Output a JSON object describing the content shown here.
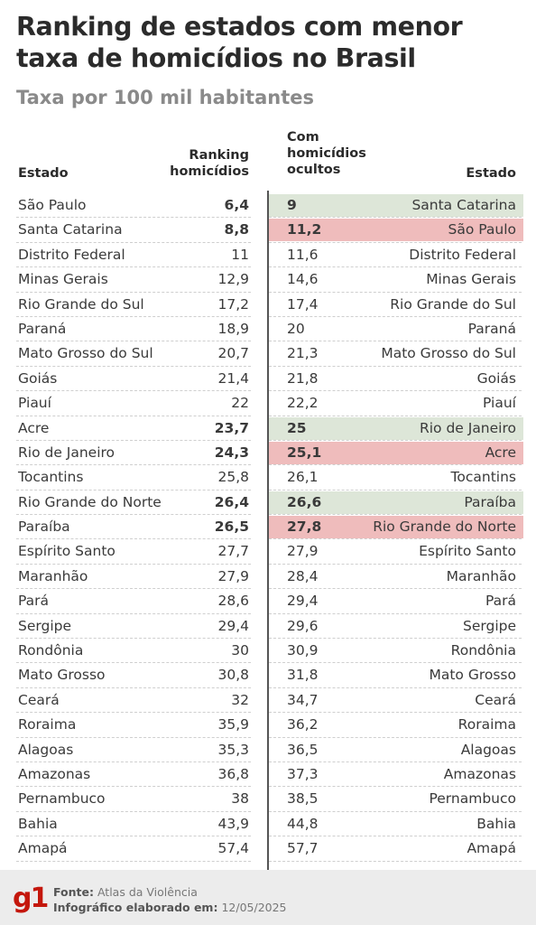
{
  "title": "Ranking de estados com menor taxa de homicídios no Brasil",
  "subtitle": "Taxa por 100 mil habitantes",
  "headers": {
    "estado_left": "Estado",
    "ranking_line1": "Ranking",
    "ranking_line2": "homicídios",
    "ocultos_line1": "Com",
    "ocultos_line2": "homicídios",
    "ocultos_line3": "ocultos",
    "estado_right": "Estado"
  },
  "colors": {
    "highlight_green": "#dde6d8",
    "highlight_red": "#efbcbc",
    "logo_red": "#c4170c"
  },
  "rows": [
    {
      "state_left": "São Paulo",
      "rate": "6,4",
      "hidden_rate": "9",
      "state_right": "Santa Catarina",
      "bold": true,
      "highlight": "green"
    },
    {
      "state_left": "Santa Catarina",
      "rate": "8,8",
      "hidden_rate": "11,2",
      "state_right": "São Paulo",
      "bold": true,
      "highlight": "red"
    },
    {
      "state_left": "Distrito Federal",
      "rate": "11",
      "hidden_rate": "11,6",
      "state_right": "Distrito Federal",
      "bold": false,
      "highlight": ""
    },
    {
      "state_left": "Minas Gerais",
      "rate": "12,9",
      "hidden_rate": "14,6",
      "state_right": "Minas Gerais",
      "bold": false,
      "highlight": ""
    },
    {
      "state_left": "Rio Grande do Sul",
      "rate": "17,2",
      "hidden_rate": "17,4",
      "state_right": "Rio Grande do Sul",
      "bold": false,
      "highlight": ""
    },
    {
      "state_left": "Paraná",
      "rate": "18,9",
      "hidden_rate": "20",
      "state_right": "Paraná",
      "bold": false,
      "highlight": ""
    },
    {
      "state_left": "Mato Grosso do Sul",
      "rate": "20,7",
      "hidden_rate": "21,3",
      "state_right": "Mato Grosso do Sul",
      "bold": false,
      "highlight": ""
    },
    {
      "state_left": "Goiás",
      "rate": "21,4",
      "hidden_rate": "21,8",
      "state_right": "Goiás",
      "bold": false,
      "highlight": ""
    },
    {
      "state_left": "Piauí",
      "rate": "22",
      "hidden_rate": "22,2",
      "state_right": "Piauí",
      "bold": false,
      "highlight": ""
    },
    {
      "state_left": "Acre",
      "rate": "23,7",
      "hidden_rate": "25",
      "state_right": "Rio de Janeiro",
      "bold": true,
      "highlight": "green"
    },
    {
      "state_left": "Rio de Janeiro",
      "rate": "24,3",
      "hidden_rate": "25,1",
      "state_right": "Acre",
      "bold": true,
      "highlight": "red"
    },
    {
      "state_left": "Tocantins",
      "rate": "25,8",
      "hidden_rate": "26,1",
      "state_right": "Tocantins",
      "bold": false,
      "highlight": ""
    },
    {
      "state_left": "Rio Grande do Norte",
      "rate": "26,4",
      "hidden_rate": "26,6",
      "state_right": "Paraíba",
      "bold": true,
      "highlight": "green"
    },
    {
      "state_left": "Paraíba",
      "rate": "26,5",
      "hidden_rate": "27,8",
      "state_right": "Rio Grande do Norte",
      "bold": true,
      "highlight": "red"
    },
    {
      "state_left": "Espírito Santo",
      "rate": "27,7",
      "hidden_rate": "27,9",
      "state_right": "Espírito Santo",
      "bold": false,
      "highlight": ""
    },
    {
      "state_left": "Maranhão",
      "rate": "27,9",
      "hidden_rate": "28,4",
      "state_right": "Maranhão",
      "bold": false,
      "highlight": ""
    },
    {
      "state_left": "Pará",
      "rate": "28,6",
      "hidden_rate": "29,4",
      "state_right": "Pará",
      "bold": false,
      "highlight": ""
    },
    {
      "state_left": "Sergipe",
      "rate": "29,4",
      "hidden_rate": "29,6",
      "state_right": "Sergipe",
      "bold": false,
      "highlight": ""
    },
    {
      "state_left": "Rondônia",
      "rate": "30",
      "hidden_rate": "30,9",
      "state_right": "Rondônia",
      "bold": false,
      "highlight": ""
    },
    {
      "state_left": "Mato Grosso",
      "rate": "30,8",
      "hidden_rate": "31,8",
      "state_right": "Mato Grosso",
      "bold": false,
      "highlight": ""
    },
    {
      "state_left": "Ceará",
      "rate": "32",
      "hidden_rate": "34,7",
      "state_right": "Ceará",
      "bold": false,
      "highlight": ""
    },
    {
      "state_left": "Roraima",
      "rate": "35,9",
      "hidden_rate": "36,2",
      "state_right": "Roraima",
      "bold": false,
      "highlight": ""
    },
    {
      "state_left": "Alagoas",
      "rate": "35,3",
      "hidden_rate": "36,5",
      "state_right": "Alagoas",
      "bold": false,
      "highlight": ""
    },
    {
      "state_left": "Amazonas",
      "rate": "36,8",
      "hidden_rate": "37,3",
      "state_right": "Amazonas",
      "bold": false,
      "highlight": ""
    },
    {
      "state_left": "Pernambuco",
      "rate": "38",
      "hidden_rate": "38,5",
      "state_right": "Pernambuco",
      "bold": false,
      "highlight": ""
    },
    {
      "state_left": "Bahia",
      "rate": "43,9",
      "hidden_rate": "44,8",
      "state_right": "Bahia",
      "bold": false,
      "highlight": ""
    },
    {
      "state_left": "Amapá",
      "rate": "57,4",
      "hidden_rate": "57,7",
      "state_right": "Amapá",
      "bold": false,
      "highlight": ""
    }
  ],
  "footer": {
    "logo": "g1",
    "source_label": "Fonte:",
    "source_value": "Atlas da Violência",
    "date_label": "Infográfico elaborado em:",
    "date_value": "12/05/2025"
  }
}
